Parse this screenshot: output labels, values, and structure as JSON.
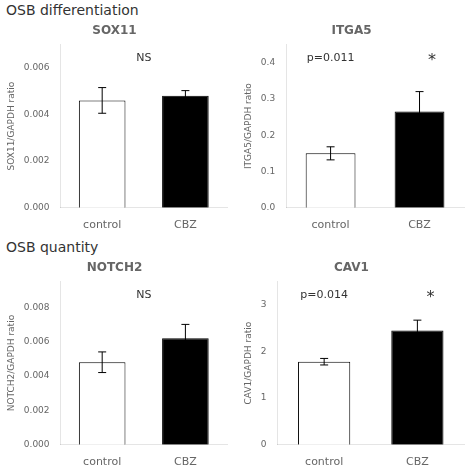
{
  "chart_data": [
    {
      "type": "bar",
      "subtitle": "OSB differentiation",
      "title": "SOX11",
      "ylabel": "SOX11/GAPDH ratio",
      "categories": [
        "control",
        "CBZ"
      ],
      "values": [
        0.0046,
        0.0048
      ],
      "errors": [
        0.00055,
        0.00022
      ],
      "colors": [
        "white",
        "black"
      ],
      "ylim": [
        0,
        0.007
      ],
      "yticks": [
        {
          "value": 0.0,
          "label": "0.000"
        },
        {
          "value": 0.002,
          "label": "0.002"
        },
        {
          "value": 0.004,
          "label": "0.004"
        },
        {
          "value": 0.006,
          "label": "0.006"
        }
      ],
      "grid": false,
      "annotations": [
        "NS"
      ]
    },
    {
      "type": "bar",
      "title": "ITGA5",
      "ylabel": "ITGA5/GAPDH ratio",
      "categories": [
        "control",
        "CBZ"
      ],
      "values": [
        0.15,
        0.265
      ],
      "errors": [
        0.018,
        0.055
      ],
      "colors": [
        "white",
        "black"
      ],
      "ylim": [
        0,
        0.45
      ],
      "yticks": [
        {
          "value": 0.0,
          "label": "0.0"
        },
        {
          "value": 0.1,
          "label": "0.1"
        },
        {
          "value": 0.2,
          "label": "0.2"
        },
        {
          "value": 0.3,
          "label": "0.3"
        },
        {
          "value": 0.4,
          "label": "0.4"
        }
      ],
      "grid": false,
      "annotations": [
        "p=0.011",
        "*"
      ]
    },
    {
      "type": "bar",
      "subtitle": "OSB quantity",
      "title": "NOTCH2",
      "ylabel": "NOTCH2/GAPDH ratio",
      "categories": [
        "control",
        "CBZ"
      ],
      "values": [
        0.0048,
        0.0062
      ],
      "errors": [
        0.0006,
        0.0008
      ],
      "colors": [
        "white",
        "black"
      ],
      "ylim": [
        0,
        0.0095
      ],
      "yticks": [
        {
          "value": 0.0,
          "label": "0.000"
        },
        {
          "value": 0.002,
          "label": "0.002"
        },
        {
          "value": 0.004,
          "label": "0.004"
        },
        {
          "value": 0.006,
          "label": "0.006"
        },
        {
          "value": 0.008,
          "label": "0.008"
        }
      ],
      "grid": false,
      "annotations": [
        "NS"
      ]
    },
    {
      "type": "bar",
      "title": "CAV1",
      "ylabel": "CAV1/GAPDH ratio",
      "categories": [
        "control",
        "CBZ"
      ],
      "values": [
        1.78,
        2.45
      ],
      "errors": [
        0.07,
        0.22
      ],
      "colors": [
        "white",
        "black"
      ],
      "ylim": [
        0,
        3.5
      ],
      "yticks": [
        0,
        1,
        2,
        3
      ],
      "grid": false,
      "annotations": [
        "p=0.014",
        "*"
      ]
    }
  ]
}
